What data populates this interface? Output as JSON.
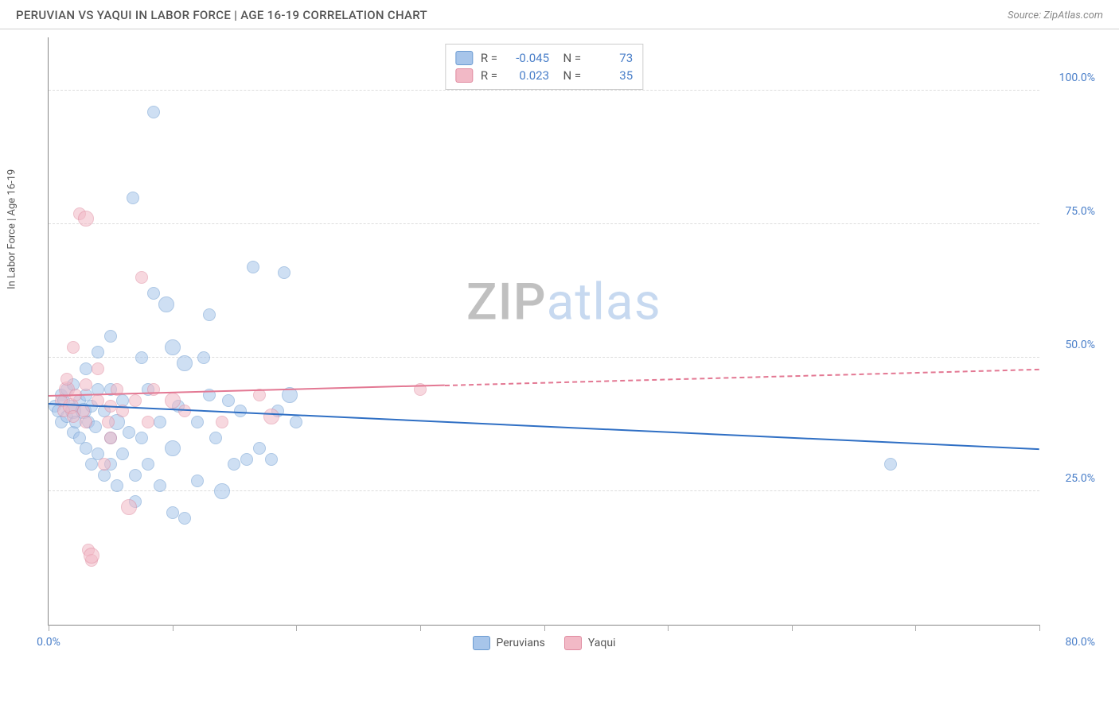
{
  "header": {
    "title": "PERUVIAN VS YAQUI IN LABOR FORCE | AGE 16-19 CORRELATION CHART",
    "source": "Source: ZipAtlas.com"
  },
  "watermark": {
    "part1": "ZIP",
    "part2": "atlas"
  },
  "chart": {
    "type": "scatter",
    "y_label": "In Labor Force | Age 16-19",
    "xlim": [
      0,
      80
    ],
    "ylim": [
      0,
      110
    ],
    "x_ticks": [
      0,
      10,
      20,
      30,
      40,
      50,
      60,
      70,
      80
    ],
    "x_tick_labels": {
      "0": "0.0%",
      "80": "80.0%"
    },
    "y_gridlines": [
      25,
      50,
      75,
      100
    ],
    "y_tick_labels": {
      "25": "25.0%",
      "50": "50.0%",
      "75": "75.0%",
      "100": "100.0%"
    },
    "background_color": "#ffffff",
    "grid_color": "#dddddd",
    "axis_color": "#888888",
    "tick_label_color": "#4a7fc9",
    "series": [
      {
        "name": "Peruvians",
        "fill_color": "#a7c5ea",
        "fill_opacity": 0.55,
        "stroke_color": "#6b9bd1",
        "line_color": "#2f6fc4",
        "R": "-0.045",
        "N": "73",
        "regression": {
          "x1": 0,
          "y1": 41.5,
          "x2": 80,
          "y2": 33,
          "solid_until_x": 80
        },
        "points": [
          [
            0.5,
            41
          ],
          [
            0.8,
            40
          ],
          [
            1,
            43
          ],
          [
            1,
            38
          ],
          [
            1.2,
            42
          ],
          [
            1.5,
            39
          ],
          [
            1.5,
            44
          ],
          [
            1.8,
            41
          ],
          [
            2,
            36
          ],
          [
            2,
            40
          ],
          [
            2,
            45
          ],
          [
            2.2,
            38
          ],
          [
            2.5,
            42
          ],
          [
            2.5,
            35
          ],
          [
            2.8,
            40
          ],
          [
            3,
            43
          ],
          [
            3,
            33
          ],
          [
            3,
            48
          ],
          [
            3.2,
            38
          ],
          [
            3.5,
            41
          ],
          [
            3.5,
            30
          ],
          [
            4,
            32
          ],
          [
            4,
            44
          ],
          [
            4,
            51
          ],
          [
            4.5,
            28
          ],
          [
            4.5,
            40
          ],
          [
            5,
            35
          ],
          [
            5,
            30
          ],
          [
            5,
            54
          ],
          [
            5.5,
            38
          ],
          [
            5.5,
            26
          ],
          [
            6,
            42
          ],
          [
            6,
            32
          ],
          [
            6.8,
            80
          ],
          [
            7,
            23
          ],
          [
            7,
            28
          ],
          [
            7.5,
            35
          ],
          [
            7.5,
            50
          ],
          [
            8,
            30
          ],
          [
            8,
            44
          ],
          [
            8.5,
            96
          ],
          [
            8.5,
            62
          ],
          [
            9,
            26
          ],
          [
            9,
            38
          ],
          [
            9.5,
            60
          ],
          [
            10,
            21
          ],
          [
            10,
            52
          ],
          [
            10,
            33
          ],
          [
            10.5,
            41
          ],
          [
            11,
            20
          ],
          [
            11,
            49
          ],
          [
            12,
            38
          ],
          [
            12,
            27
          ],
          [
            12.5,
            50
          ],
          [
            13,
            43
          ],
          [
            13.5,
            35
          ],
          [
            14,
            25
          ],
          [
            14.5,
            42
          ],
          [
            15,
            30
          ],
          [
            15.5,
            40
          ],
          [
            16,
            31
          ],
          [
            16.5,
            67
          ],
          [
            17,
            33
          ],
          [
            18,
            31
          ],
          [
            18.5,
            40
          ],
          [
            19,
            66
          ],
          [
            19.5,
            43
          ],
          [
            20,
            38
          ],
          [
            13,
            58
          ],
          [
            5,
            44
          ],
          [
            6.5,
            36
          ],
          [
            68,
            30
          ],
          [
            3.8,
            37
          ]
        ]
      },
      {
        "name": "Yaqui",
        "fill_color": "#f2b9c6",
        "fill_opacity": 0.55,
        "stroke_color": "#e08ba0",
        "line_color": "#e37893",
        "R": "0.023",
        "N": "35",
        "regression": {
          "x1": 0,
          "y1": 43,
          "x2": 80,
          "y2": 48,
          "solid_until_x": 32
        },
        "points": [
          [
            1,
            42
          ],
          [
            1.2,
            40
          ],
          [
            1.5,
            44
          ],
          [
            1.5,
            46
          ],
          [
            1.8,
            41
          ],
          [
            2,
            39
          ],
          [
            2,
            52
          ],
          [
            2.2,
            43
          ],
          [
            2.5,
            77
          ],
          [
            2.8,
            40
          ],
          [
            3,
            45
          ],
          [
            3,
            38
          ],
          [
            3,
            76
          ],
          [
            3.2,
            14
          ],
          [
            3.5,
            12
          ],
          [
            3.5,
            13
          ],
          [
            4,
            42
          ],
          [
            4,
            48
          ],
          [
            4.5,
            30
          ],
          [
            4.8,
            38
          ],
          [
            5,
            41
          ],
          [
            5,
            35
          ],
          [
            5.5,
            44
          ],
          [
            6,
            40
          ],
          [
            6.5,
            22
          ],
          [
            7,
            42
          ],
          [
            7.5,
            65
          ],
          [
            8,
            38
          ],
          [
            8.5,
            44
          ],
          [
            10,
            42
          ],
          [
            11,
            40
          ],
          [
            14,
            38
          ],
          [
            17,
            43
          ],
          [
            18,
            39
          ],
          [
            30,
            44
          ]
        ]
      }
    ],
    "legend_bottom": [
      {
        "label": "Peruvians",
        "fill": "#a7c5ea",
        "stroke": "#6b9bd1"
      },
      {
        "label": "Yaqui",
        "fill": "#f2b9c6",
        "stroke": "#e08ba0"
      }
    ]
  }
}
